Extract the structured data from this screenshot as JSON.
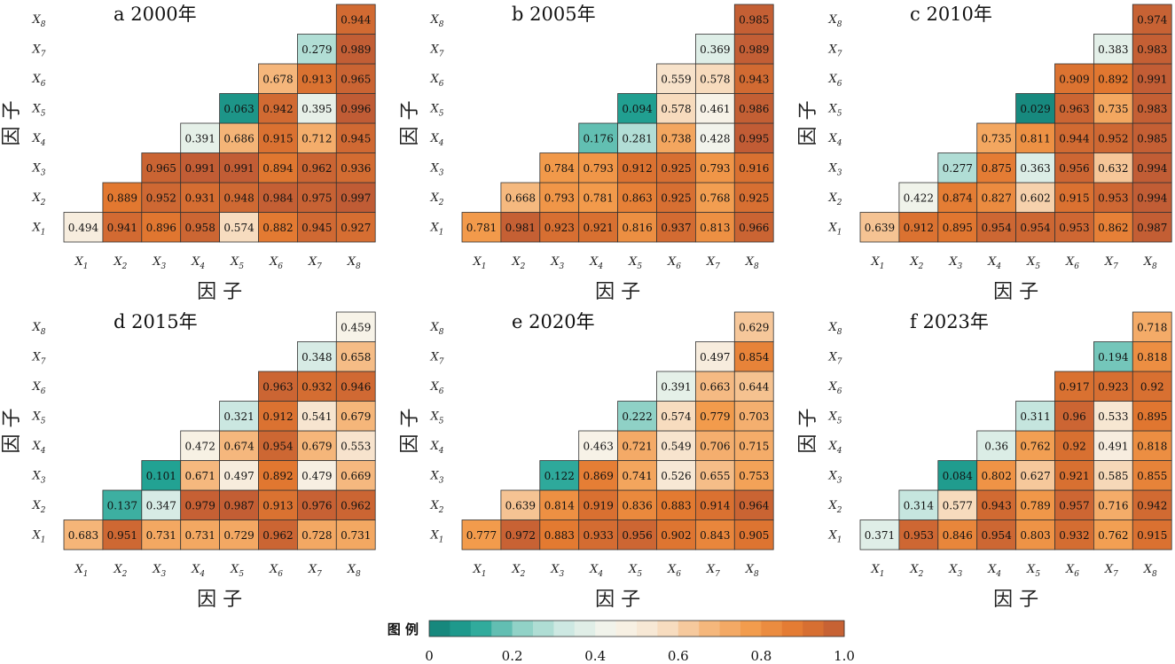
{
  "chart_data": [
    {
      "type": "heatmap",
      "panel_letter": "a",
      "title": "2000年",
      "xlabel": "因 子",
      "ylabel": "因 子",
      "factors": [
        "X1",
        "X2",
        "X3",
        "X4",
        "X5",
        "X6",
        "X7",
        "X8"
      ],
      "rows": [
        [
          0.494,
          0.941,
          0.896,
          0.958,
          0.574,
          0.882,
          0.945,
          0.927
        ],
        [
          0.889,
          0.952,
          0.931,
          0.948,
          0.984,
          0.975,
          0.997
        ],
        [
          0.965,
          0.991,
          0.991,
          0.894,
          0.962,
          0.936
        ],
        [
          0.391,
          0.686,
          0.915,
          0.712,
          0.945
        ],
        [
          0.063,
          0.942,
          0.395,
          0.996
        ],
        [
          0.678,
          0.913,
          0.965
        ],
        [
          0.279,
          0.989
        ],
        [
          0.944
        ]
      ],
      "labels": [
        [
          "0.494",
          "0.941",
          "0.896",
          "0.958",
          "0.574",
          "0.882",
          "0.945",
          "0.927"
        ],
        [
          "0.889",
          "0.952",
          "0.931",
          "0.948",
          "0.984",
          "0.975",
          "0.997"
        ],
        [
          "0.965",
          "0.991",
          "0.991",
          "0.894",
          "0.962",
          "0.936"
        ],
        [
          "0.391",
          "0.686",
          "0.915",
          "0.712",
          "0.945"
        ],
        [
          "0.063",
          "0.942",
          "0.395",
          "0.996"
        ],
        [
          "0.678",
          "0.913",
          "0.965"
        ],
        [
          "0.279",
          "0.989"
        ],
        [
          "0.944"
        ]
      ]
    },
    {
      "type": "heatmap",
      "panel_letter": "b",
      "title": "2005年",
      "xlabel": "因 子",
      "ylabel": "因 子",
      "factors": [
        "X1",
        "X2",
        "X3",
        "X4",
        "X5",
        "X6",
        "X7",
        "X8"
      ],
      "rows": [
        [
          0.781,
          0.981,
          0.923,
          0.921,
          0.816,
          0.937,
          0.813,
          0.966
        ],
        [
          0.668,
          0.793,
          0.781,
          0.863,
          0.925,
          0.768,
          0.925
        ],
        [
          0.784,
          0.793,
          0.912,
          0.925,
          0.793,
          0.916
        ],
        [
          0.176,
          0.281,
          0.738,
          0.428,
          0.995
        ],
        [
          0.094,
          0.578,
          0.461,
          0.986
        ],
        [
          0.559,
          0.578,
          0.943
        ],
        [
          0.369,
          0.989
        ],
        [
          0.985
        ]
      ],
      "labels": [
        [
          "0.781",
          "0.981",
          "0.923",
          "0.921",
          "0.816",
          "0.937",
          "0.813",
          "0.966"
        ],
        [
          "0.668",
          "0.793",
          "0.781",
          "0.863",
          "0.925",
          "0.768",
          "0.925"
        ],
        [
          "0.784",
          "0.793",
          "0.912",
          "0.925",
          "0.793",
          "0.916"
        ],
        [
          "0.176",
          "0.281",
          "0.738",
          "0.428",
          "0.995"
        ],
        [
          "0.094",
          "0.578",
          "0.461",
          "0.986"
        ],
        [
          "0.559",
          "0.578",
          "0.943"
        ],
        [
          "0.369",
          "0.989"
        ],
        [
          "0.985"
        ]
      ]
    },
    {
      "type": "heatmap",
      "panel_letter": "c",
      "title": "2010年",
      "xlabel": "因 子",
      "ylabel": "因 子",
      "factors": [
        "X1",
        "X2",
        "X3",
        "X4",
        "X5",
        "X6",
        "X7",
        "X8"
      ],
      "rows": [
        [
          0.639,
          0.912,
          0.895,
          0.954,
          0.954,
          0.953,
          0.862,
          0.987
        ],
        [
          0.422,
          0.874,
          0.827,
          0.602,
          0.915,
          0.953,
          0.994
        ],
        [
          0.277,
          0.875,
          0.363,
          0.956,
          0.632,
          0.994
        ],
        [
          0.735,
          0.811,
          0.944,
          0.952,
          0.985
        ],
        [
          0.029,
          0.963,
          0.735,
          0.983
        ],
        [
          0.909,
          0.892,
          0.991
        ],
        [
          0.383,
          0.983
        ],
        [
          0.974
        ]
      ],
      "labels": [
        [
          "0.639",
          "0.912",
          "0.895",
          "0.954",
          "0.954",
          "0.953",
          "0.862",
          "0.987"
        ],
        [
          "0.422",
          "0.874",
          "0.827",
          "0.602",
          "0.915",
          "0.953",
          "0.994"
        ],
        [
          "0.277",
          "0.875",
          "0.363",
          "0.956",
          "0.632",
          "0.994"
        ],
        [
          "0.735",
          "0.811",
          "0.944",
          "0.952",
          "0.985"
        ],
        [
          "0.029",
          "0.963",
          "0.735",
          "0.983"
        ],
        [
          "0.909",
          "0.892",
          "0.991"
        ],
        [
          "0.383",
          "0.983"
        ],
        [
          "0.974"
        ]
      ]
    },
    {
      "type": "heatmap",
      "panel_letter": "d",
      "title": "2015年",
      "xlabel": "因 子",
      "ylabel": "因 子",
      "factors": [
        "X1",
        "X2",
        "X3",
        "X4",
        "X5",
        "X6",
        "X7",
        "X8"
      ],
      "rows": [
        [
          0.683,
          0.951,
          0.731,
          0.731,
          0.729,
          0.962,
          0.728,
          0.731
        ],
        [
          0.137,
          0.347,
          0.979,
          0.987,
          0.913,
          0.976,
          0.962
        ],
        [
          0.101,
          0.671,
          0.497,
          0.892,
          0.479,
          0.669
        ],
        [
          0.472,
          0.674,
          0.954,
          0.679,
          0.553
        ],
        [
          0.321,
          0.912,
          0.541,
          0.679
        ],
        [
          0.963,
          0.932,
          0.946
        ],
        [
          0.348,
          0.658
        ],
        [
          0.459
        ]
      ],
      "labels": [
        [
          "0.683",
          "0.951",
          "0.731",
          "0.731",
          "0.729",
          "0.962",
          "0.728",
          "0.731"
        ],
        [
          "0.137",
          "0.347",
          "0.979",
          "0.987",
          "0.913",
          "0.976",
          "0.962"
        ],
        [
          "0.101",
          "0.671",
          "0.497",
          "0.892",
          "0.479",
          "0.669"
        ],
        [
          "0.472",
          "0.674",
          "0.954",
          "0.679",
          "0.553"
        ],
        [
          "0.321",
          "0.912",
          "0.541",
          "0.679"
        ],
        [
          "0.963",
          "0.932",
          "0.946"
        ],
        [
          "0.348",
          "0.658"
        ],
        [
          "0.459"
        ]
      ]
    },
    {
      "type": "heatmap",
      "panel_letter": "e",
      "title": "2020年",
      "xlabel": "因 子",
      "ylabel": "因 子",
      "factors": [
        "X1",
        "X2",
        "X3",
        "X4",
        "X5",
        "X6",
        "X7",
        "X8"
      ],
      "rows": [
        [
          0.777,
          0.972,
          0.883,
          0.933,
          0.956,
          0.902,
          0.843,
          0.905
        ],
        [
          0.639,
          0.814,
          0.919,
          0.836,
          0.883,
          0.914,
          0.964
        ],
        [
          0.122,
          0.869,
          0.741,
          0.526,
          0.655,
          0.753
        ],
        [
          0.463,
          0.721,
          0.549,
          0.706,
          0.715
        ],
        [
          0.222,
          0.574,
          0.779,
          0.703
        ],
        [
          0.391,
          0.663,
          0.644
        ],
        [
          0.497,
          0.854
        ],
        [
          0.629
        ]
      ],
      "labels": [
        [
          "0.777",
          "0.972",
          "0.883",
          "0.933",
          "0.956",
          "0.902",
          "0.843",
          "0.905"
        ],
        [
          "0.639",
          "0.814",
          "0.919",
          "0.836",
          "0.883",
          "0.914",
          "0.964"
        ],
        [
          "0.122",
          "0.869",
          "0.741",
          "0.526",
          "0.655",
          "0.753"
        ],
        [
          "0.463",
          "0.721",
          "0.549",
          "0.706",
          "0.715"
        ],
        [
          "0.222",
          "0.574",
          "0.779",
          "0.703"
        ],
        [
          "0.391",
          "0.663",
          "0.644"
        ],
        [
          "0.497",
          "0.854"
        ],
        [
          "0.629"
        ]
      ]
    },
    {
      "type": "heatmap",
      "panel_letter": "f",
      "title": "2023年",
      "xlabel": "因 子",
      "ylabel": "因 子",
      "factors": [
        "X1",
        "X2",
        "X3",
        "X4",
        "X5",
        "X6",
        "X7",
        "X8"
      ],
      "rows": [
        [
          0.371,
          0.953,
          0.846,
          0.954,
          0.803,
          0.932,
          0.762,
          0.915
        ],
        [
          0.314,
          0.577,
          0.943,
          0.789,
          0.957,
          0.716,
          0.942
        ],
        [
          0.084,
          0.802,
          0.627,
          0.921,
          0.585,
          0.855
        ],
        [
          0.36,
          0.762,
          0.92,
          0.491,
          0.818
        ],
        [
          0.311,
          0.96,
          0.533,
          0.895
        ],
        [
          0.917,
          0.923,
          0.92
        ],
        [
          0.194,
          0.818
        ],
        [
          0.718
        ]
      ],
      "labels": [
        [
          "0.371",
          "0.953",
          "0.846",
          "0.954",
          "0.803",
          "0.932",
          "0.762",
          "0.915"
        ],
        [
          "0.314",
          "0.577",
          "0.943",
          "0.789",
          "0.957",
          "0.716",
          "0.942"
        ],
        [
          "0.084",
          "0.802",
          "0.627",
          "0.921",
          "0.585",
          "0.855"
        ],
        [
          "0.36",
          "0.762",
          "0.92",
          "0.491",
          "0.818"
        ],
        [
          "0.311",
          "0.96",
          "0.533",
          "0.895"
        ],
        [
          "0.917",
          "0.923",
          "0.92"
        ],
        [
          "0.194",
          "0.818"
        ],
        [
          "0.718"
        ]
      ]
    }
  ],
  "legend": {
    "title": "图 例",
    "min": 0,
    "max": 1,
    "steps": 20,
    "ticks": [
      "0",
      "0.2",
      "0.4",
      "0.6",
      "0.8",
      "1.0"
    ]
  },
  "colors": {
    "colormap": [
      "#137f76",
      "#24a596",
      "#8fd1c6",
      "#d2eae4",
      "#f7f5ec",
      "#f7e3cc",
      "#f5b980",
      "#f29b4c",
      "#e27830",
      "#bf5b35"
    ],
    "cell_border": "#333333",
    "text": "#111111"
  }
}
